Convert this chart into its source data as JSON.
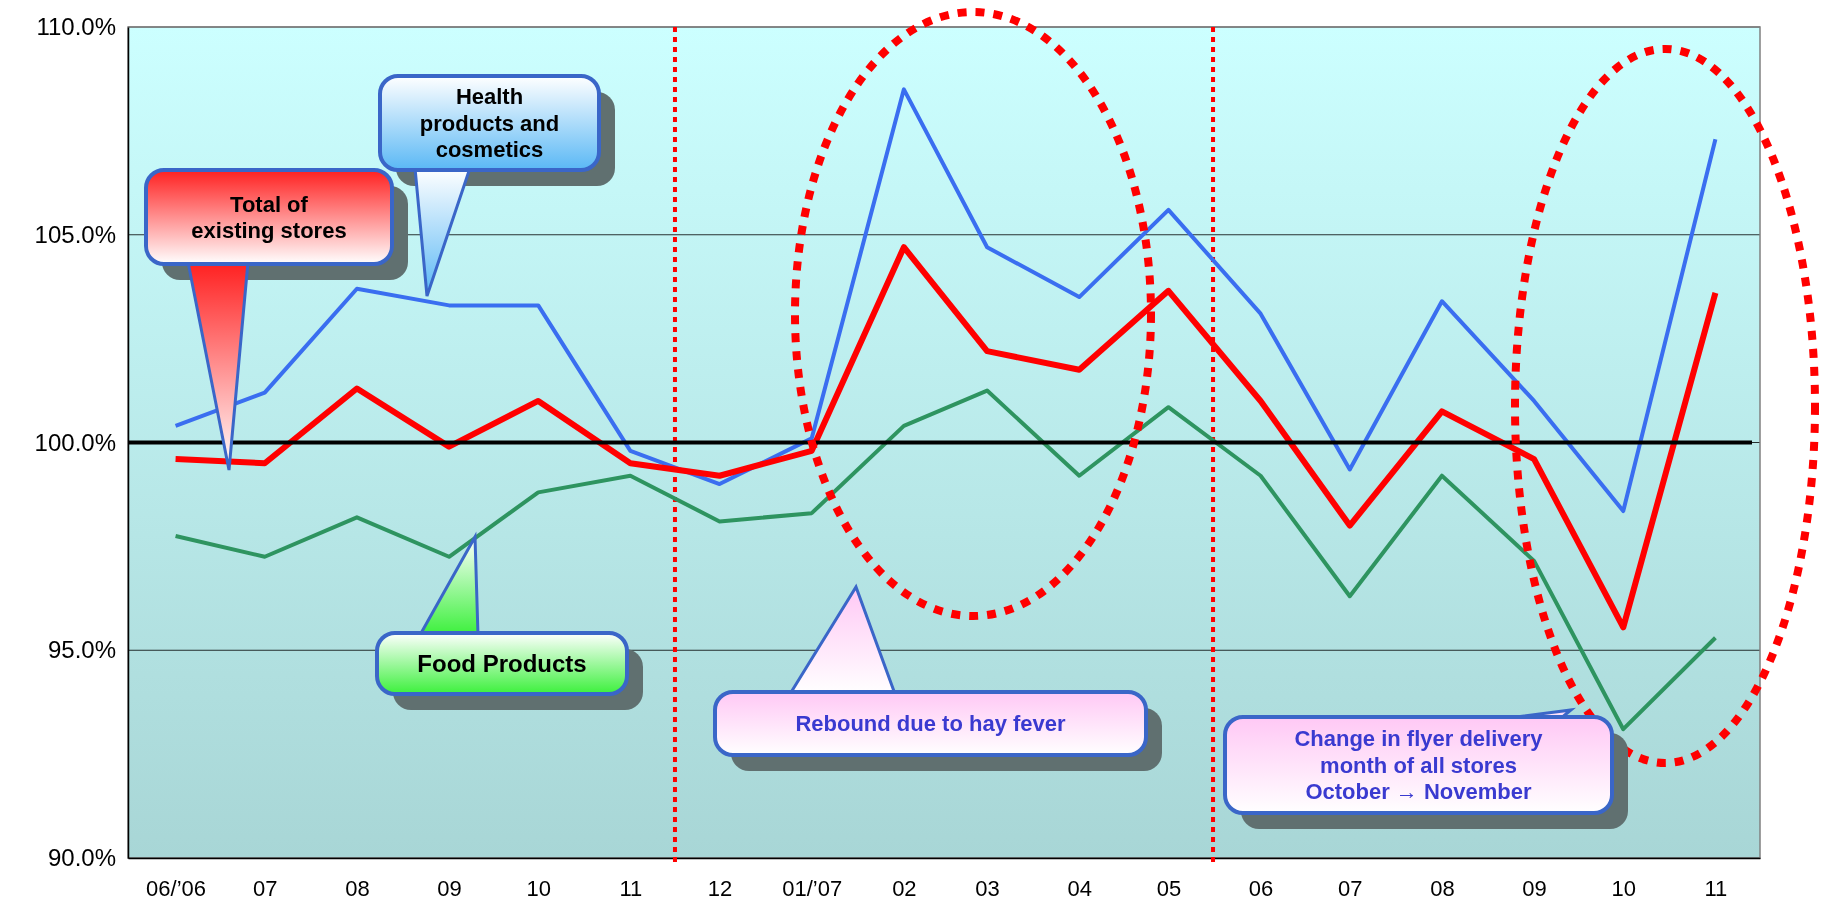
{
  "chart_data": {
    "type": "line",
    "x": [
      "2006-06",
      "2006-07",
      "2006-08",
      "2006-09",
      "2006-10",
      "2006-11",
      "2006-12",
      "2007-01",
      "2007-02",
      "2007-03",
      "2007-04",
      "2007-05",
      "2007-06",
      "2007-07",
      "2007-08",
      "2007-09",
      "2007-10",
      "2007-11"
    ],
    "xlim": [
      "2006-05-16",
      "2007-11-16"
    ],
    "xticks": [
      {
        "value": "2006-06",
        "label": "06/’06"
      },
      {
        "value": "2006-07",
        "label": "07"
      },
      {
        "value": "2006-08",
        "label": "08"
      },
      {
        "value": "2006-09",
        "label": "09"
      },
      {
        "value": "2006-10",
        "label": "10"
      },
      {
        "value": "2006-11",
        "label": "11"
      },
      {
        "value": "2006-12",
        "label": "12"
      },
      {
        "value": "2007-01",
        "label": "01/’07"
      },
      {
        "value": "2007-02",
        "label": "02"
      },
      {
        "value": "2007-03",
        "label": "03"
      },
      {
        "value": "2007-04",
        "label": "04"
      },
      {
        "value": "2007-05",
        "label": "05"
      },
      {
        "value": "2007-06",
        "label": "06"
      },
      {
        "value": "2007-07",
        "label": "07"
      },
      {
        "value": "2007-08",
        "label": "08"
      },
      {
        "value": "2007-09",
        "label": "09"
      },
      {
        "value": "2007-10",
        "label": "10"
      },
      {
        "value": "2007-11",
        "label": "11"
      }
    ],
    "ylim": [
      90,
      110
    ],
    "yticks": [
      {
        "value": 90,
        "label": "90.0%"
      },
      {
        "value": 95,
        "label": "95.0%"
      },
      {
        "value": 100,
        "label": "100.0%"
      },
      {
        "value": 105,
        "label": "105.0%"
      },
      {
        "value": 110,
        "label": "110.0%"
      }
    ],
    "grid": "y",
    "line_style": "solid",
    "marker": "none",
    "series": [
      {
        "name": "Health products and cosmetics",
        "color": "#3a6ef0",
        "values": [
          100.4,
          101.2,
          103.7,
          103.3,
          103.3,
          99.8,
          99.0,
          100.1,
          108.5,
          104.7,
          103.5,
          105.6,
          103.1,
          99.35,
          103.4,
          101.0,
          98.35,
          107.3
        ]
      },
      {
        "name": "Total of existing stores",
        "color": "#ff0000",
        "values": [
          99.6,
          99.5,
          101.3,
          99.9,
          101.0,
          99.5,
          99.2,
          99.8,
          104.7,
          102.2,
          101.75,
          103.65,
          101.0,
          98.0,
          100.75,
          99.6,
          95.55,
          103.6
        ]
      },
      {
        "name": "Food Products",
        "color": "#2e9460",
        "values": [
          97.75,
          97.25,
          98.2,
          97.25,
          98.8,
          99.2,
          98.1,
          98.3,
          100.4,
          101.25,
          99.2,
          100.85,
          99.2,
          96.3,
          99.2,
          97.15,
          93.1,
          95.3
        ]
      }
    ],
    "ref_lines": [
      {
        "axis": "y",
        "value": 100,
        "color": "#000000",
        "line_style": "solid"
      },
      {
        "axis": "x",
        "value": "2006-11-16",
        "color": "#ff0000",
        "line_style": "dotted"
      },
      {
        "axis": "x",
        "value": "2007-05-16",
        "color": "#ff0000",
        "line_style": "dotted"
      }
    ],
    "annotations": [
      "Rebound due to hay fever",
      "Change in flyer delivery month of all stores October → November"
    ]
  }
}
